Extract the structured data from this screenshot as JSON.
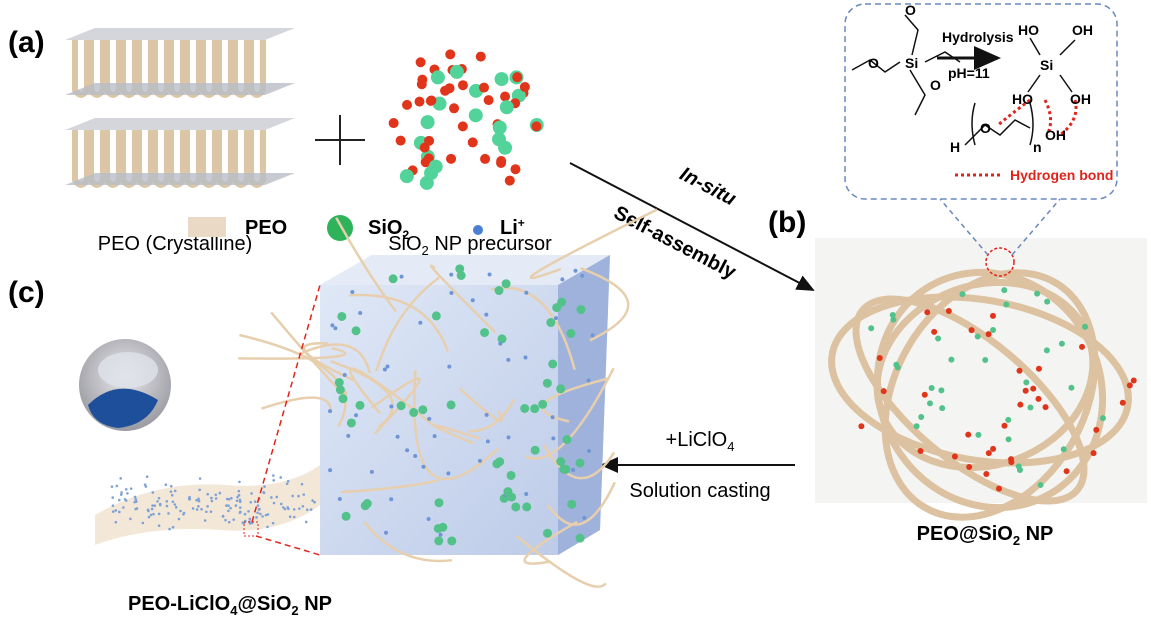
{
  "panels": {
    "a": "(a)",
    "b": "(b)",
    "c": "(c)"
  },
  "labels": {
    "peo_crystalline": "PEO (Crystalline)",
    "sio2_precursor": [
      "SiO",
      "2",
      " NP precursor"
    ],
    "in_situ": "In-situ",
    "self_assembly": "Self-assembly",
    "peo_sio2": [
      "PEO@SiO",
      "2",
      " NP"
    ],
    "liclo4": [
      "+LiClO",
      "4"
    ],
    "solution_casting": "Solution casting",
    "final": [
      "PEO-LiClO",
      "4",
      "@SiO",
      "2",
      " NP"
    ]
  },
  "legend": [
    {
      "label": [
        "PEO"
      ]
    },
    {
      "label": [
        "SiO",
        "2"
      ]
    },
    {
      "label": [
        "Li",
        "+"
      ]
    }
  ],
  "inset": {
    "hydrolysis": "Hydrolysis",
    "ph": "pH=11",
    "si": "Si",
    "hydroxyls": [
      "HO",
      "OH",
      "HO",
      "OH"
    ],
    "polymer_oh": "OH",
    "polymer_o": "O",
    "polymer_h": "H",
    "polymer_n": "n",
    "ester_o": [
      "O",
      "O",
      "O",
      "Si"
    ],
    "hydrogen_bond": "Hydrogen bond"
  }
}
